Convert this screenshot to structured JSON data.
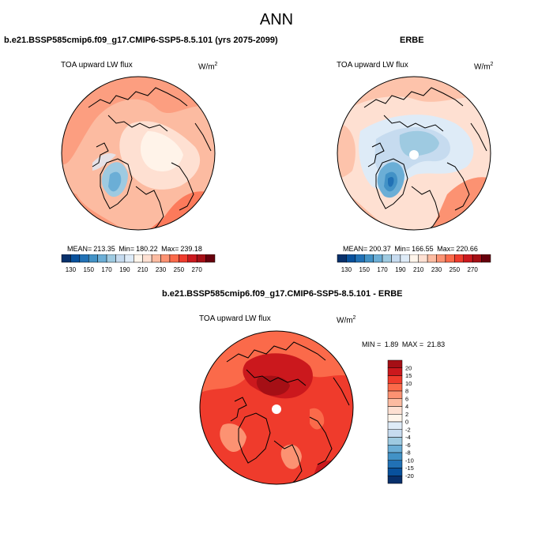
{
  "page": {
    "title": "ANN"
  },
  "panels": [
    {
      "title": "b.e21.BSSP585cmip6.f09_g17.CMIP6-SSP5-8.5.101 (yrs 2075-2099)",
      "variable": "TOA upward LW flux",
      "units": "W/m",
      "units_exp": "2",
      "mean_label": "MEAN=",
      "mean": "213.35",
      "min_label": "Min=",
      "min": "180.22",
      "max_label": "Max=",
      "max": "239.18",
      "colorbar": {
        "ticks": [
          "130",
          "150",
          "170",
          "190",
          "210",
          "230",
          "250",
          "270"
        ],
        "colors": [
          "#08306b",
          "#08519c",
          "#2171b5",
          "#4292c6",
          "#6baed6",
          "#9ecae1",
          "#c6dbef",
          "#deebf7",
          "#fff5eb",
          "#fee0d2",
          "#fcbba1",
          "#fc9272",
          "#fb6a4a",
          "#ef3b2c",
          "#cb181d",
          "#a50f15",
          "#67000d"
        ]
      }
    },
    {
      "title": "ERBE",
      "variable": "TOA upward LW flux",
      "units": "W/m",
      "units_exp": "2",
      "mean_label": "MEAN=",
      "mean": "200.37",
      "min_label": "Min=",
      "min": "166.55",
      "max_label": "Max=",
      "max": "220.66",
      "colorbar": {
        "ticks": [
          "130",
          "150",
          "170",
          "190",
          "210",
          "230",
          "250",
          "270"
        ],
        "colors": [
          "#08306b",
          "#08519c",
          "#2171b5",
          "#4292c6",
          "#6baed6",
          "#9ecae1",
          "#c6dbef",
          "#deebf7",
          "#fff5eb",
          "#fee0d2",
          "#fcbba1",
          "#fc9272",
          "#fb6a4a",
          "#ef3b2c",
          "#cb181d",
          "#a50f15",
          "#67000d"
        ]
      }
    }
  ],
  "diff": {
    "title": "b.e21.BSSP585cmip6.f09_g17.CMIP6-SSP5-8.5.101 - ERBE",
    "variable": "TOA upward LW flux",
    "units": "W/m",
    "units_exp": "2",
    "min_label": "MIN =",
    "min": "1.89",
    "max_label": "MAX =",
    "max": "21.83",
    "colorbar": {
      "ticks": [
        "20",
        "15",
        "10",
        "8",
        "6",
        "4",
        "2",
        "0",
        "-2",
        "-4",
        "-6",
        "-8",
        "-10",
        "-15",
        "-20"
      ],
      "colors": [
        "#a50f15",
        "#cb181d",
        "#ef3b2c",
        "#fb6a4a",
        "#fc9272",
        "#fcbba1",
        "#fee0d2",
        "#fff5eb",
        "#deebf7",
        "#c6dbef",
        "#9ecae1",
        "#6baed6",
        "#4292c6",
        "#2171b5",
        "#08519c",
        "#08306b"
      ]
    }
  }
}
